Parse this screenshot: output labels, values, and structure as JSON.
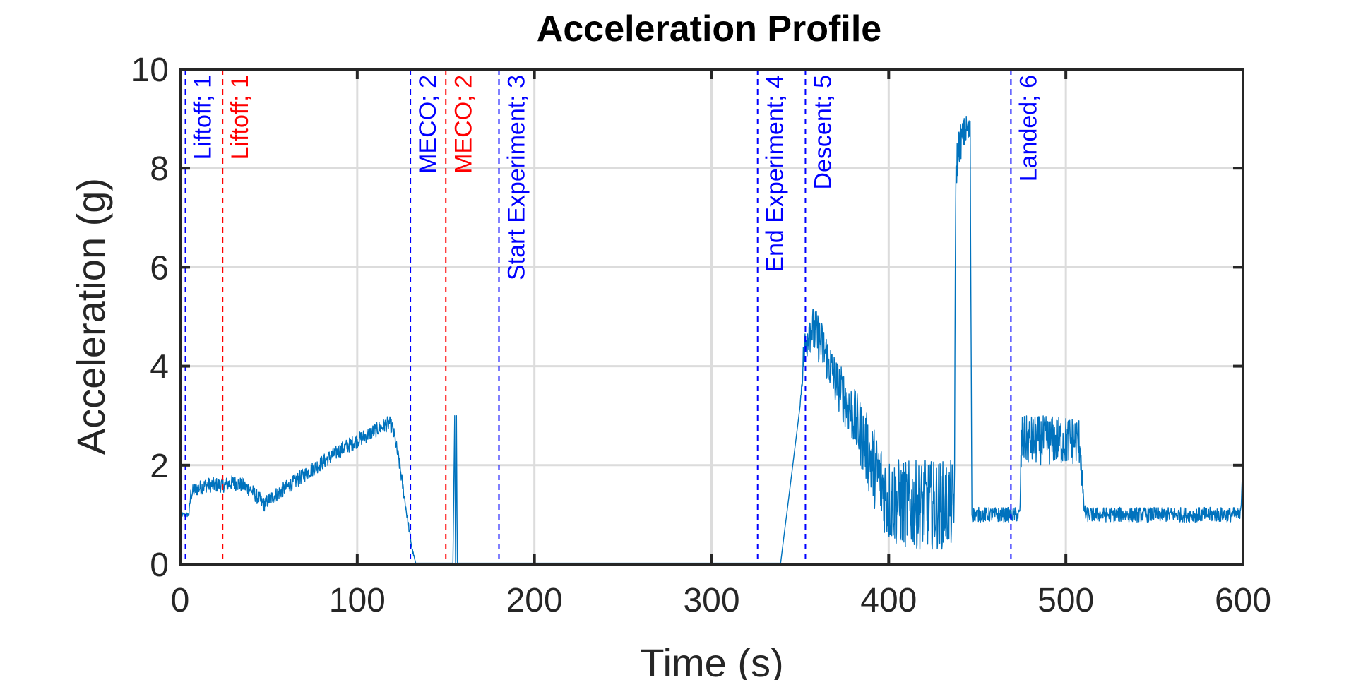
{
  "chart_data": {
    "type": "line",
    "title": "Acceleration Profile",
    "xlabel": "Time (s)",
    "ylabel": "Acceleration (g)",
    "xlim": [
      0,
      600
    ],
    "ylim": [
      0,
      10
    ],
    "xticks": [
      0,
      100,
      200,
      300,
      400,
      500,
      600
    ],
    "yticks": [
      0,
      2,
      4,
      6,
      8,
      10
    ],
    "xtick_labels": [
      "0",
      "100",
      "200",
      "300",
      "400",
      "500",
      "600"
    ],
    "ytick_labels": [
      "0",
      "2",
      "4",
      "6",
      "8",
      "10"
    ],
    "grid": true,
    "colors": {
      "series": "#0072BD",
      "event_blue": "#0000FF",
      "event_red": "#FF0000",
      "grid": "#dcdcdc",
      "axis": "#262626"
    },
    "series": [
      {
        "x": [
          0,
          2,
          5,
          6,
          8,
          15,
          20,
          25,
          30,
          35,
          40,
          45,
          47,
          50,
          60,
          70,
          80,
          90,
          100,
          110,
          118,
          120,
          124,
          128,
          131,
          133,
          150,
          154,
          155,
          155.5,
          156,
          156.5,
          157,
          200,
          300,
          339,
          350,
          352,
          355,
          360,
          365,
          370,
          380,
          390,
          400,
          410,
          420,
          435,
          437,
          438,
          440,
          444,
          446,
          447,
          450,
          460,
          470,
          474,
          475,
          480,
          490,
          500,
          508,
          510,
          511,
          520,
          540,
          560,
          580,
          598,
          599,
          600
        ],
        "y": [
          1.0,
          1.0,
          1.0,
          1.4,
          1.5,
          1.6,
          1.6,
          1.6,
          1.65,
          1.6,
          1.5,
          1.3,
          1.2,
          1.3,
          1.55,
          1.8,
          2.05,
          2.3,
          2.5,
          2.7,
          2.85,
          2.75,
          2.0,
          1.0,
          0.3,
          0.02,
          0.02,
          0.02,
          3.0,
          0.02,
          3.0,
          0.02,
          0.02,
          0.02,
          0.02,
          0.02,
          3.2,
          4.2,
          4.8,
          4.6,
          4.2,
          3.7,
          3.0,
          2.1,
          1.3,
          1.2,
          1.2,
          1.2,
          1.2,
          8.0,
          8.5,
          8.8,
          8.7,
          1.0,
          1.0,
          1.0,
          1.0,
          1.0,
          2.5,
          2.5,
          2.5,
          2.5,
          2.5,
          1.2,
          1.0,
          1.0,
          1.0,
          1.0,
          1.0,
          1.0,
          1.2,
          2.2
        ],
        "noise": [
          0.05,
          0.05,
          0.05,
          0.15,
          0.15,
          0.15,
          0.15,
          0.15,
          0.15,
          0.15,
          0.15,
          0.15,
          0.15,
          0.15,
          0.15,
          0.15,
          0.15,
          0.15,
          0.15,
          0.15,
          0.15,
          0.15,
          0.15,
          0.1,
          0.05,
          0.0,
          0.0,
          0.0,
          0.0,
          0.0,
          0.0,
          0.0,
          0.0,
          0.0,
          0.0,
          0.0,
          0.0,
          0.4,
          0.5,
          0.5,
          0.5,
          0.5,
          0.6,
          0.8,
          0.9,
          0.9,
          0.9,
          0.9,
          0.9,
          0.5,
          0.4,
          0.3,
          0.3,
          0.15,
          0.15,
          0.15,
          0.15,
          0.15,
          0.5,
          0.5,
          0.5,
          0.5,
          0.5,
          0.15,
          0.15,
          0.15,
          0.15,
          0.15,
          0.15,
          0.15,
          0.0,
          0.0
        ]
      }
    ],
    "events": [
      {
        "label": "Liftoff; 1",
        "x": 3,
        "color": "#0000FF"
      },
      {
        "label": "Liftoff; 1",
        "x": 24,
        "color": "#FF0000"
      },
      {
        "label": "MECO; 2",
        "x": 130,
        "color": "#0000FF"
      },
      {
        "label": "MECO; 2",
        "x": 150,
        "color": "#FF0000"
      },
      {
        "label": "Start Experiment; 3",
        "x": 180,
        "color": "#0000FF"
      },
      {
        "label": "End Experiment; 4",
        "x": 326,
        "color": "#0000FF"
      },
      {
        "label": "Descent; 5",
        "x": 353,
        "color": "#0000FF"
      },
      {
        "label": "Landed; 6",
        "x": 469,
        "color": "#0000FF"
      }
    ]
  }
}
